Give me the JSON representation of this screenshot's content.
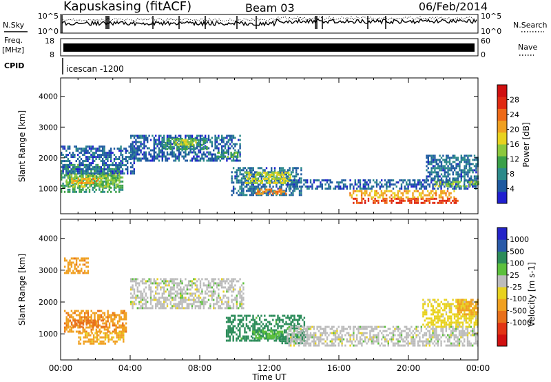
{
  "header": {
    "station": "Kapuskasing (fitACF)",
    "beam": "Beam 03",
    "date": "06/Feb/2014"
  },
  "strip": {
    "nsky_label": "N.Sky",
    "nsky_left_ticks": [
      "10^5",
      "10^0"
    ],
    "nsearch_label": "N.Search",
    "nsearch_right_ticks": [
      "10^5",
      "10^0"
    ],
    "freq_label": "Freq.",
    "freq_unit": "[MHz]",
    "freq_ticks": [
      "18",
      "8"
    ],
    "nave_label": "Nave",
    "nave_ticks": [
      "60",
      "0"
    ],
    "cpid_label": "CPID",
    "cpid_value": "icescan -1200",
    "styles": {
      "nsky": "solid",
      "nsearch": "dotted",
      "freq": "solid",
      "nave": "dotted"
    }
  },
  "x_axis": {
    "label": "Time UT",
    "ticks": [
      "00:00",
      "04:00",
      "08:00",
      "12:00",
      "16:00",
      "20:00",
      "00:00"
    ],
    "range_hours": [
      0,
      24
    ]
  },
  "chart_data": [
    {
      "type": "heatmap",
      "panel": "power",
      "ylabel": "Slant Range [km]",
      "yticks": [
        "1000",
        "2000",
        "3000",
        "4000"
      ],
      "ylim": [
        180,
        4600
      ],
      "xlim_hours": [
        0,
        24
      ],
      "colorbar": {
        "label": "Power [dB]",
        "ticks": [
          "4",
          "8",
          "12",
          "16",
          "20",
          "24",
          "28"
        ],
        "range": [
          0,
          32
        ],
        "colors": [
          "#2020d0",
          "#1e5aa0",
          "#2c8a8a",
          "#3aa048",
          "#8cc83c",
          "#e8d21e",
          "#f0a020",
          "#ee6a18",
          "#e02a12",
          "#d01010"
        ]
      },
      "regions": [
        {
          "t": [
            0.0,
            3.6
          ],
          "r": [
            900,
            1800
          ],
          "level": 10
        },
        {
          "t": [
            0.3,
            3.4
          ],
          "r": [
            1050,
            1500
          ],
          "level": 14
        },
        {
          "t": [
            0.6,
            2.2
          ],
          "r": [
            1200,
            1350
          ],
          "level": 20
        },
        {
          "t": [
            0.0,
            4.2
          ],
          "r": [
            1500,
            2400
          ],
          "level": 5
        },
        {
          "t": [
            4.0,
            10.3
          ],
          "r": [
            1900,
            2750
          ],
          "level": 5
        },
        {
          "t": [
            5.8,
            8.4
          ],
          "r": [
            2300,
            2650
          ],
          "level": 10
        },
        {
          "t": [
            6.5,
            7.8
          ],
          "r": [
            2400,
            2600
          ],
          "level": 16
        },
        {
          "t": [
            9.0,
            10.2
          ],
          "r": [
            2000,
            2200
          ],
          "level": 12
        },
        {
          "t": [
            9.8,
            13.8
          ],
          "r": [
            800,
            1700
          ],
          "level": 6
        },
        {
          "t": [
            10.6,
            13.2
          ],
          "r": [
            1150,
            1550
          ],
          "level": 16
        },
        {
          "t": [
            11.2,
            13.0
          ],
          "r": [
            850,
            1000
          ],
          "level": 22
        },
        {
          "t": [
            13.0,
            24.0
          ],
          "r": [
            1000,
            1300
          ],
          "level": 5
        },
        {
          "t": [
            16.8,
            22.8
          ],
          "r": [
            500,
            700
          ],
          "level": 26
        },
        {
          "t": [
            16.6,
            22.6
          ],
          "r": [
            700,
            950
          ],
          "level": 20
        },
        {
          "t": [
            21.0,
            24.0
          ],
          "r": [
            1250,
            2100
          ],
          "level": 6
        },
        {
          "t": [
            21.5,
            24.0
          ],
          "r": [
            1050,
            1250
          ],
          "level": 14
        }
      ]
    },
    {
      "type": "heatmap",
      "panel": "velocity",
      "ylabel": "Slant Range [km]",
      "yticks": [
        "1000",
        "2000",
        "3000",
        "4000"
      ],
      "ylim": [
        180,
        4600
      ],
      "xlim_hours": [
        0,
        24
      ],
      "colorbar": {
        "label": "Velocity [m s-1]",
        "ticks": [
          "1000",
          "500",
          "100",
          "25",
          "-25",
          "-100",
          "-500",
          "-1000"
        ],
        "colors": [
          "#2424c8",
          "#2a5aa8",
          "#2c8c5a",
          "#5cc03c",
          "#bcbcbc",
          "#e8d21e",
          "#f0a020",
          "#e8701a",
          "#e23414",
          "#d01010"
        ]
      },
      "regions": [
        {
          "t": [
            0.2,
            3.8
          ],
          "r": [
            1050,
            1750
          ],
          "level": -400
        },
        {
          "t": [
            0.5,
            2.6
          ],
          "r": [
            1200,
            1450
          ],
          "level": -700
        },
        {
          "t": [
            1.0,
            3.6
          ],
          "r": [
            700,
            1050
          ],
          "level": -120
        },
        {
          "t": [
            0.2,
            1.6
          ],
          "r": [
            2900,
            3400
          ],
          "level": -400
        },
        {
          "t": [
            4.0,
            10.5
          ],
          "r": [
            1800,
            2750
          ],
          "level": 0
        },
        {
          "t": [
            9.5,
            14.0
          ],
          "r": [
            800,
            1600
          ],
          "level": 150
        },
        {
          "t": [
            11.0,
            12.8
          ],
          "r": [
            900,
            1100
          ],
          "level": 80
        },
        {
          "t": [
            12.6,
            14.2
          ],
          "r": [
            700,
            1000
          ],
          "level": 300
        },
        {
          "t": [
            13.0,
            24.0
          ],
          "r": [
            600,
            1250
          ],
          "level": 0
        },
        {
          "t": [
            20.8,
            24.0
          ],
          "r": [
            1250,
            2100
          ],
          "level": -50
        },
        {
          "t": [
            22.8,
            24.0
          ],
          "r": [
            1600,
            2100
          ],
          "level": -200
        }
      ]
    }
  ]
}
